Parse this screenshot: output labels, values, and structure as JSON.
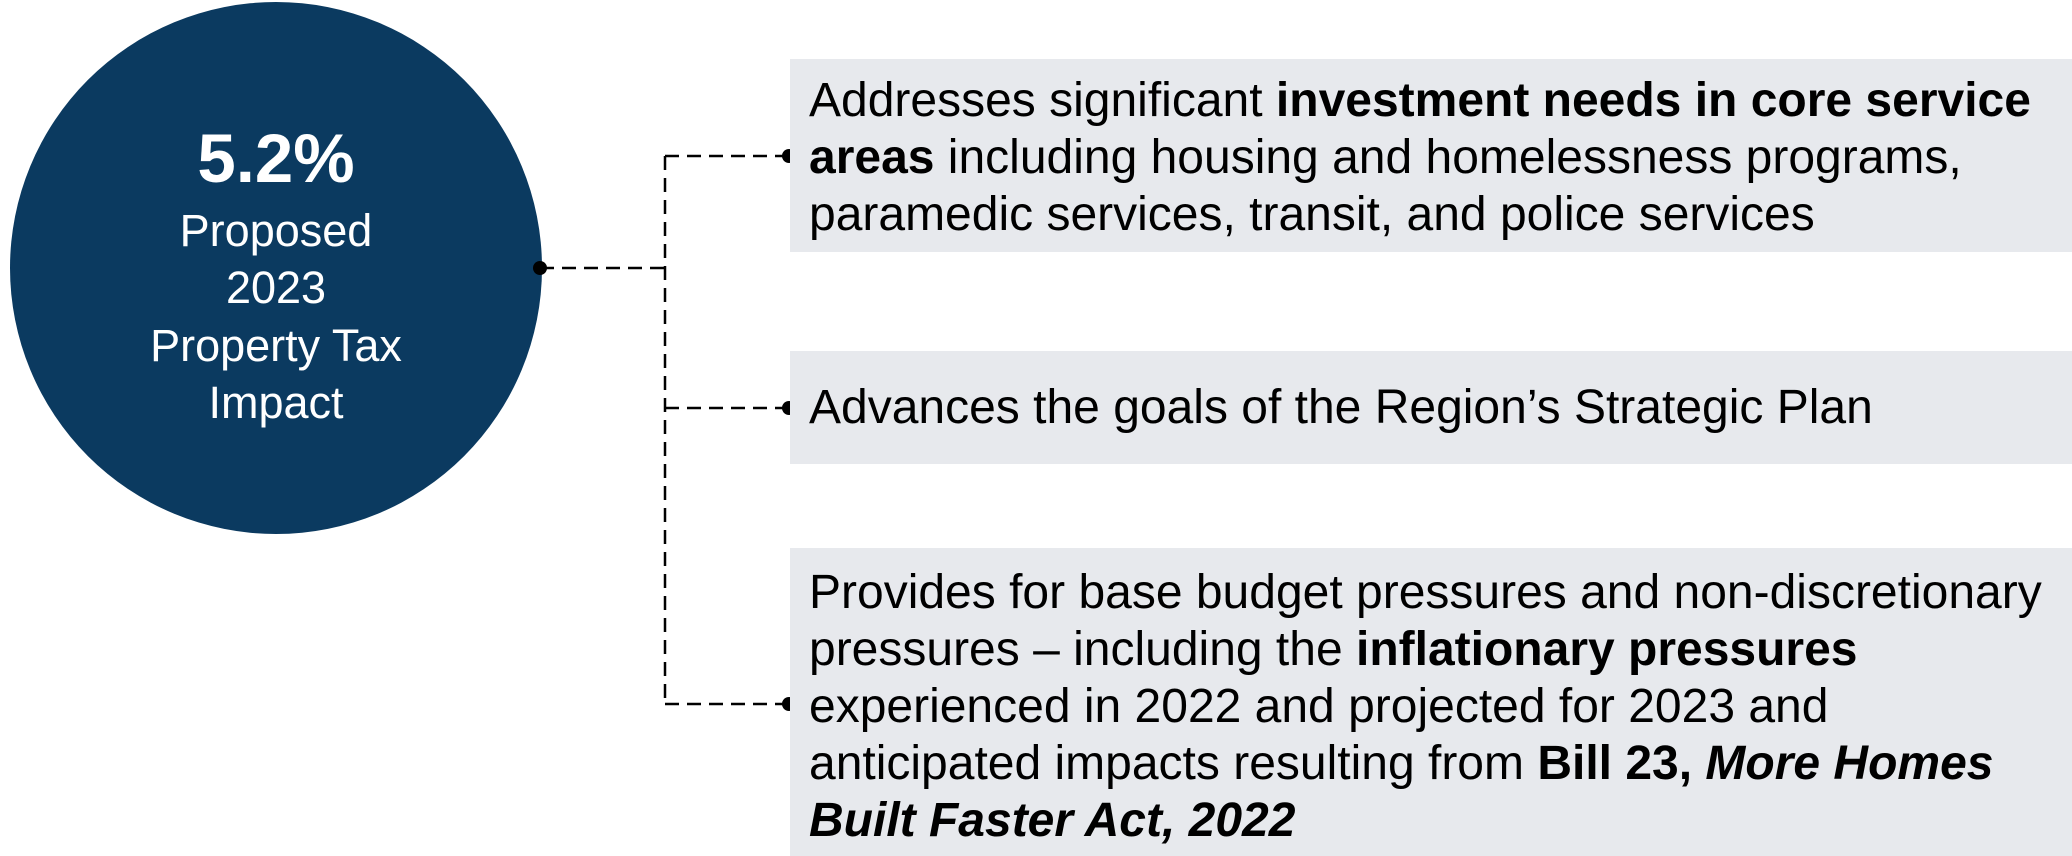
{
  "circle": {
    "value": "5.2%",
    "label_lines": [
      "Proposed",
      "2023",
      "Property Tax",
      "Impact"
    ]
  },
  "items": [
    {
      "runs": [
        {
          "text": "Addresses significant ",
          "style": "normal"
        },
        {
          "text": "investment needs in core service areas",
          "style": "bold"
        },
        {
          "text": " including housing and homelessness programs, paramedic services, transit, and police services",
          "style": "normal"
        }
      ]
    },
    {
      "runs": [
        {
          "text": "Advances the goals of the Region’s Strategic Plan",
          "style": "normal"
        }
      ]
    },
    {
      "runs": [
        {
          "text": "Provides for base budget pressures and non-discretionary pressures – including the ",
          "style": "normal"
        },
        {
          "text": "inflationary pressures",
          "style": "bold"
        },
        {
          "text": " experienced in 2022 and projected for 2023 and anticipated impacts resulting from ",
          "style": "normal"
        },
        {
          "text": "Bill 23, ",
          "style": "bold"
        },
        {
          "text": "More Homes Built Faster Act, 2022",
          "style": "bold-italic"
        }
      ]
    }
  ]
}
